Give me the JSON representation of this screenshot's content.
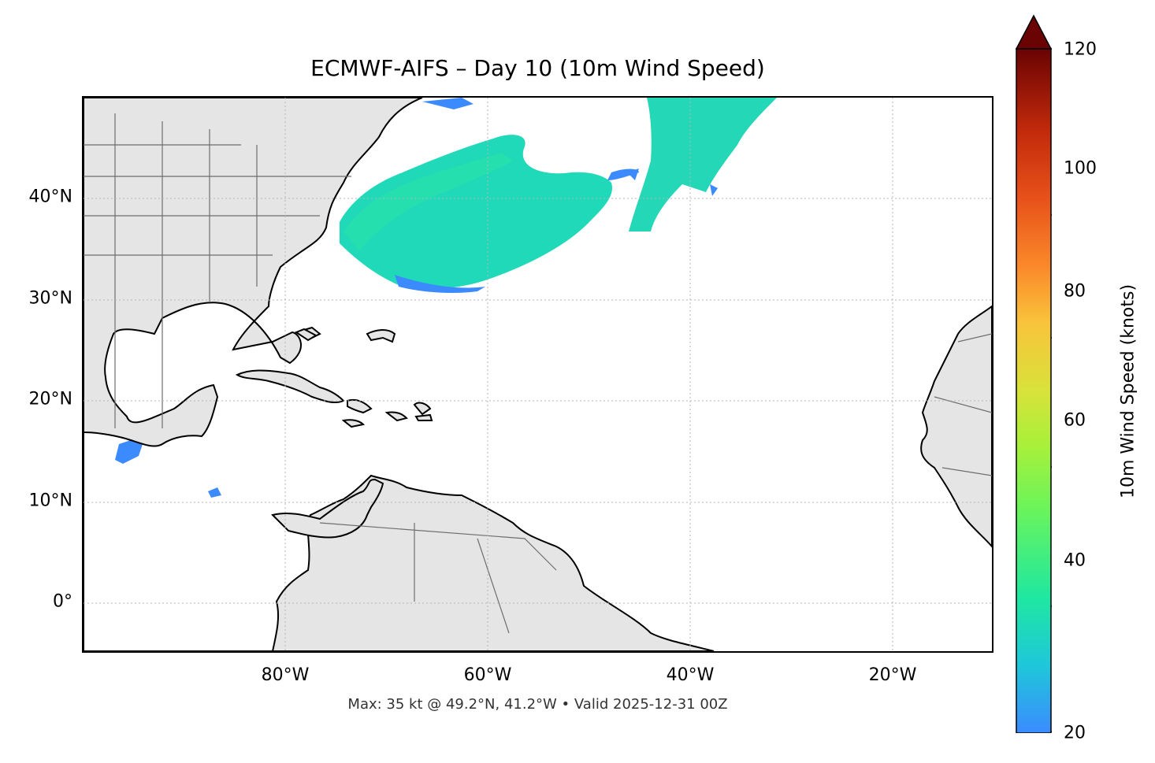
{
  "title": "ECMWF-AIFS – Day 10 (10m Wind Speed)",
  "footer": "Max: 35 kt @ 49.2°N, 41.2°W • Valid 2025-12-31 00Z",
  "map": {
    "lon_range": [
      -100,
      -10
    ],
    "lat_range": [
      -5,
      50
    ],
    "gridlines": true,
    "lat_ticks": [
      "40°N",
      "30°N",
      "20°N",
      "10°N",
      "0°"
    ],
    "lon_ticks": [
      "80°W",
      "60°W",
      "40°W",
      "20°W"
    ],
    "land_color": "#e5e5e5",
    "coast_color": "#000000",
    "border_color": "#6e6e6e"
  },
  "colorbar": {
    "title": "10m Wind Speed (knots)",
    "ticks": [
      "20",
      "40",
      "60",
      "80",
      "100",
      "120"
    ],
    "extend": "max",
    "colors": [
      "#3b8bff",
      "#1ec8d9",
      "#1fe8a0",
      "#6cf45a",
      "#a8f03a",
      "#d8e23a",
      "#f9c33b",
      "#fa8a2a",
      "#e8521a",
      "#c22a0b",
      "#8e0f05",
      "#6a0303"
    ]
  }
}
